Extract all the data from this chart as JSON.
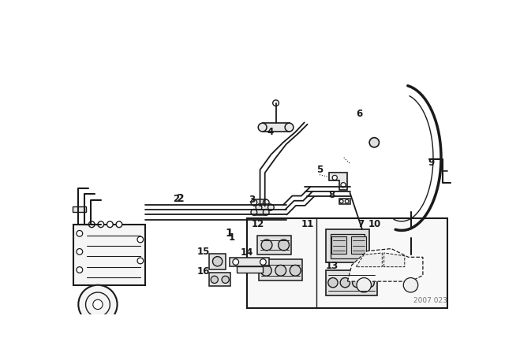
{
  "bg_color": "#ffffff",
  "line_color": "#1a1a1a",
  "watermark": "2007 023"
}
